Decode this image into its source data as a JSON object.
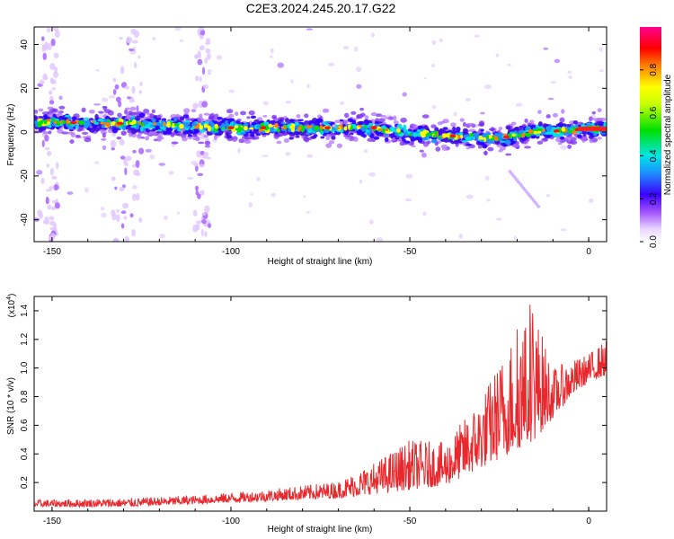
{
  "title": "C2E3.2024.245.20.17.G22",
  "chart_data": [
    {
      "type": "heatmap",
      "xlabel": "Height of straight line (km)",
      "ylabel": "Frequency (Hz)",
      "xlim": [
        -155,
        5
      ],
      "ylim": [
        -50,
        48
      ],
      "xticks": [
        -150,
        -100,
        -50,
        0
      ],
      "yticks": [
        -40,
        -20,
        0,
        20,
        40
      ],
      "colorbar": {
        "label": "Normalized spectral amplitude",
        "range": [
          0,
          1
        ],
        "ticks": [
          "0.0",
          "0.2",
          "0.4",
          "0.6",
          "0.8"
        ],
        "tick_values": [
          0,
          0.2,
          0.4,
          0.6,
          0.8
        ]
      },
      "ridge": {
        "description_points": [
          {
            "x": -155,
            "y": 4.5
          },
          {
            "x": -130,
            "y": 4.0
          },
          {
            "x": -100,
            "y": 2.0
          },
          {
            "x": -75,
            "y": 2.0
          },
          {
            "x": -60,
            "y": 2.0
          },
          {
            "x": -50,
            "y": -0.5
          },
          {
            "x": -35,
            "y": -2.0
          },
          {
            "x": -25,
            "y": -3.0
          },
          {
            "x": -15,
            "y": 0.5
          },
          {
            "x": -8,
            "y": 0.5
          },
          {
            "x": 0,
            "y": 1.5
          },
          {
            "x": 5,
            "y": 1.5
          }
        ]
      },
      "colors": [
        "#ffffff",
        "#e6d2ff",
        "#8a3cff",
        "#2a00ff",
        "#1e90ff",
        "#00e5e5",
        "#00e000",
        "#ffff00",
        "#ff8000",
        "#ff0000",
        "#ff0080"
      ]
    },
    {
      "type": "line",
      "xlabel": "Height of straight line (km)",
      "ylabel": "SNR (10 * v/v)",
      "multiplier": "(x10",
      "multiplier_exp": "4",
      "multiplier_close": ")",
      "xlim": [
        -155,
        5
      ],
      "ylim": [
        0,
        1.5
      ],
      "xticks": [
        -150,
        -100,
        -50,
        0
      ],
      "yticks": [
        0.2,
        0.4,
        0.6,
        0.8,
        1.0,
        1.2,
        1.4
      ],
      "ytick_labels": [
        "0.2",
        "0.4",
        "0.6",
        "0.8",
        "1.0",
        "1.2",
        "1.4"
      ],
      "color": "#e8282d",
      "envelope": [
        {
          "x": -155,
          "base": 0.03,
          "amp": 0.05
        },
        {
          "x": -130,
          "base": 0.03,
          "amp": 0.06
        },
        {
          "x": -110,
          "base": 0.05,
          "amp": 0.06
        },
        {
          "x": -90,
          "base": 0.07,
          "amp": 0.08
        },
        {
          "x": -70,
          "base": 0.09,
          "amp": 0.12
        },
        {
          "x": -60,
          "base": 0.12,
          "amp": 0.22
        },
        {
          "x": -50,
          "base": 0.15,
          "amp": 0.35
        },
        {
          "x": -40,
          "base": 0.18,
          "amp": 0.3
        },
        {
          "x": -30,
          "base": 0.3,
          "amp": 0.5
        },
        {
          "x": -22,
          "base": 0.4,
          "amp": 0.8
        },
        {
          "x": -15,
          "base": 0.5,
          "amp": 0.9
        },
        {
          "x": -10,
          "base": 0.65,
          "amp": 0.35
        },
        {
          "x": -5,
          "base": 0.8,
          "amp": 0.25
        },
        {
          "x": 0,
          "base": 0.9,
          "amp": 0.2
        },
        {
          "x": 5,
          "base": 0.95,
          "amp": 0.25
        }
      ]
    }
  ]
}
